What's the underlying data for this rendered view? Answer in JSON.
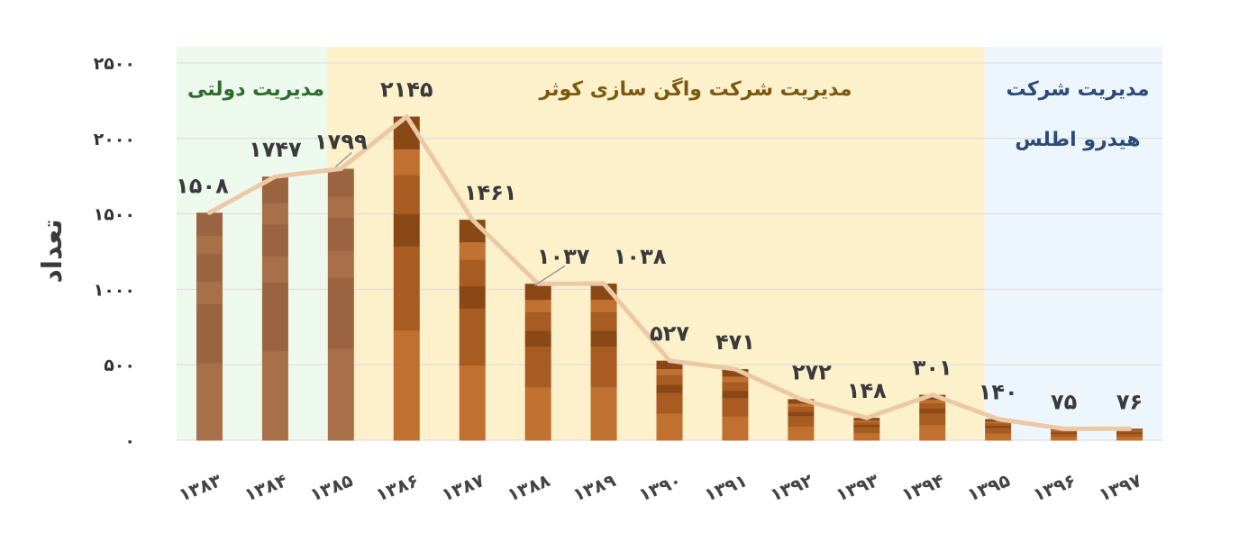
{
  "chart_data": {
    "type": "bar",
    "title": "",
    "xlabel": "",
    "ylabel": "تعداد",
    "ylim": [
      0,
      2500
    ],
    "yticks": [
      0,
      500,
      1000,
      1500,
      2000,
      2500
    ],
    "ytick_labels": [
      "۰",
      "۵۰۰",
      "۱۰۰۰",
      "۱۵۰۰",
      "۲۰۰۰",
      "۲۵۰۰"
    ],
    "grid": true,
    "categories": [
      "۱۳۸۳",
      "۱۳۸۴",
      "۱۳۸۵",
      "۱۳۸۶",
      "۱۳۸۷",
      "۱۳۸۸",
      "۱۳۸۹",
      "۱۳۹۰",
      "۱۳۹۱",
      "۱۳۹۲",
      "۱۳۹۳",
      "۱۳۹۴",
      "۱۳۹۵",
      "۱۳۹۶",
      "۱۳۹۷"
    ],
    "values": [
      1508,
      1747,
      1799,
      2145,
      1461,
      1037,
      1038,
      527,
      471,
      272,
      148,
      301,
      140,
      75,
      76
    ],
    "value_labels": [
      "۱۵۰۸",
      "۱۷۴۷",
      "۱۷۹۹",
      "۲۱۴۵",
      "۱۴۶۱",
      "۱۰۳۷",
      "۱۰۳۸",
      "۵۲۷",
      "۴۷۱",
      "۲۷۲",
      "۱۴۸",
      "۳۰۱",
      "۱۴۰",
      "۷۵",
      "۷۶"
    ],
    "trend_line": true,
    "periods": [
      {
        "label": "مدیریت دولتی",
        "from": 0,
        "to": 2,
        "color": "#eef9ee",
        "text_color": "#2e6b2e"
      },
      {
        "label": "مدیریت شرکت واگن سازی کوثر",
        "from": 2,
        "to": 12,
        "color": "#fdf1cc",
        "text_color": "#7a5a10"
      },
      {
        "label": "مدیریت شرکت",
        "label2": "هیدرو اطلس",
        "from": 12,
        "to": 14,
        "color": "#eef6fd",
        "text_color": "#2c4a7a"
      }
    ],
    "colors": {
      "bar_light": "#c07030",
      "bar_mid": "#a85c22",
      "bar_dark": "#8a4816",
      "bar_muted": "#a87048",
      "trend": "#ecc9a6",
      "grid": "#d9d9d9"
    }
  }
}
